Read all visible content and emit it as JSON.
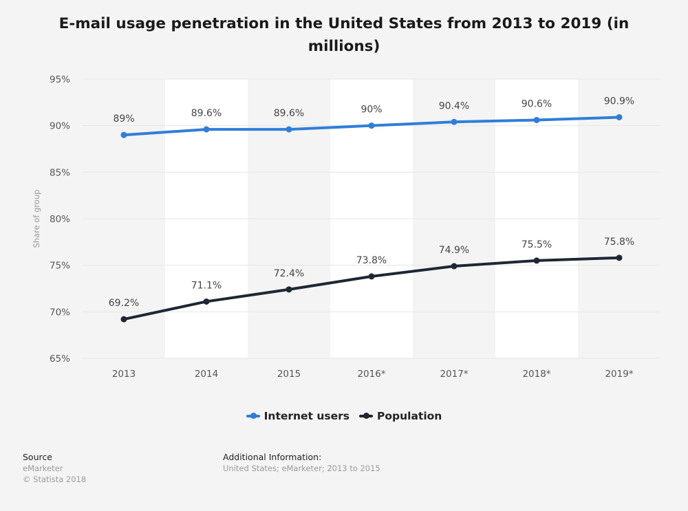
{
  "title": "E-mail usage penetration in the United States from 2013 to 2019 (in millions)",
  "chart_data": {
    "type": "line",
    "title": "E-mail usage penetration in the United States from 2013 to 2019 (in millions)",
    "categories": [
      "2013",
      "2014",
      "2015",
      "2016*",
      "2017*",
      "2018*",
      "2019*"
    ],
    "series": [
      {
        "name": "Internet users",
        "color": "#2f7ed8",
        "values": [
          89,
          89.6,
          89.6,
          90,
          90.4,
          90.6,
          90.9
        ],
        "labels": [
          "89%",
          "89.6%",
          "89.6%",
          "90%",
          "90.4%",
          "90.6%",
          "90.9%"
        ]
      },
      {
        "name": "Population",
        "color": "#1c2833",
        "values": [
          69.2,
          71.1,
          72.4,
          73.8,
          74.9,
          75.5,
          75.8
        ],
        "labels": [
          "69.2%",
          "71.1%",
          "72.4%",
          "73.8%",
          "74.9%",
          "75.5%",
          "75.8%"
        ]
      }
    ],
    "ylabel": "Share of group",
    "xlabel": "",
    "ylim": [
      65,
      95
    ],
    "yticks": [
      95,
      90,
      85,
      80,
      75,
      70,
      65
    ],
    "ytick_labels": [
      "95%",
      "90%",
      "85%",
      "80%",
      "75%",
      "70%",
      "65%"
    ],
    "grid": true,
    "legend": "bottom-center"
  },
  "source": {
    "label": "Source",
    "name": "eMarketer",
    "copyright": "© Statista 2018"
  },
  "additional": {
    "label": "Additional Information:",
    "text": "United States; eMarketer; 2013 to 2015"
  }
}
